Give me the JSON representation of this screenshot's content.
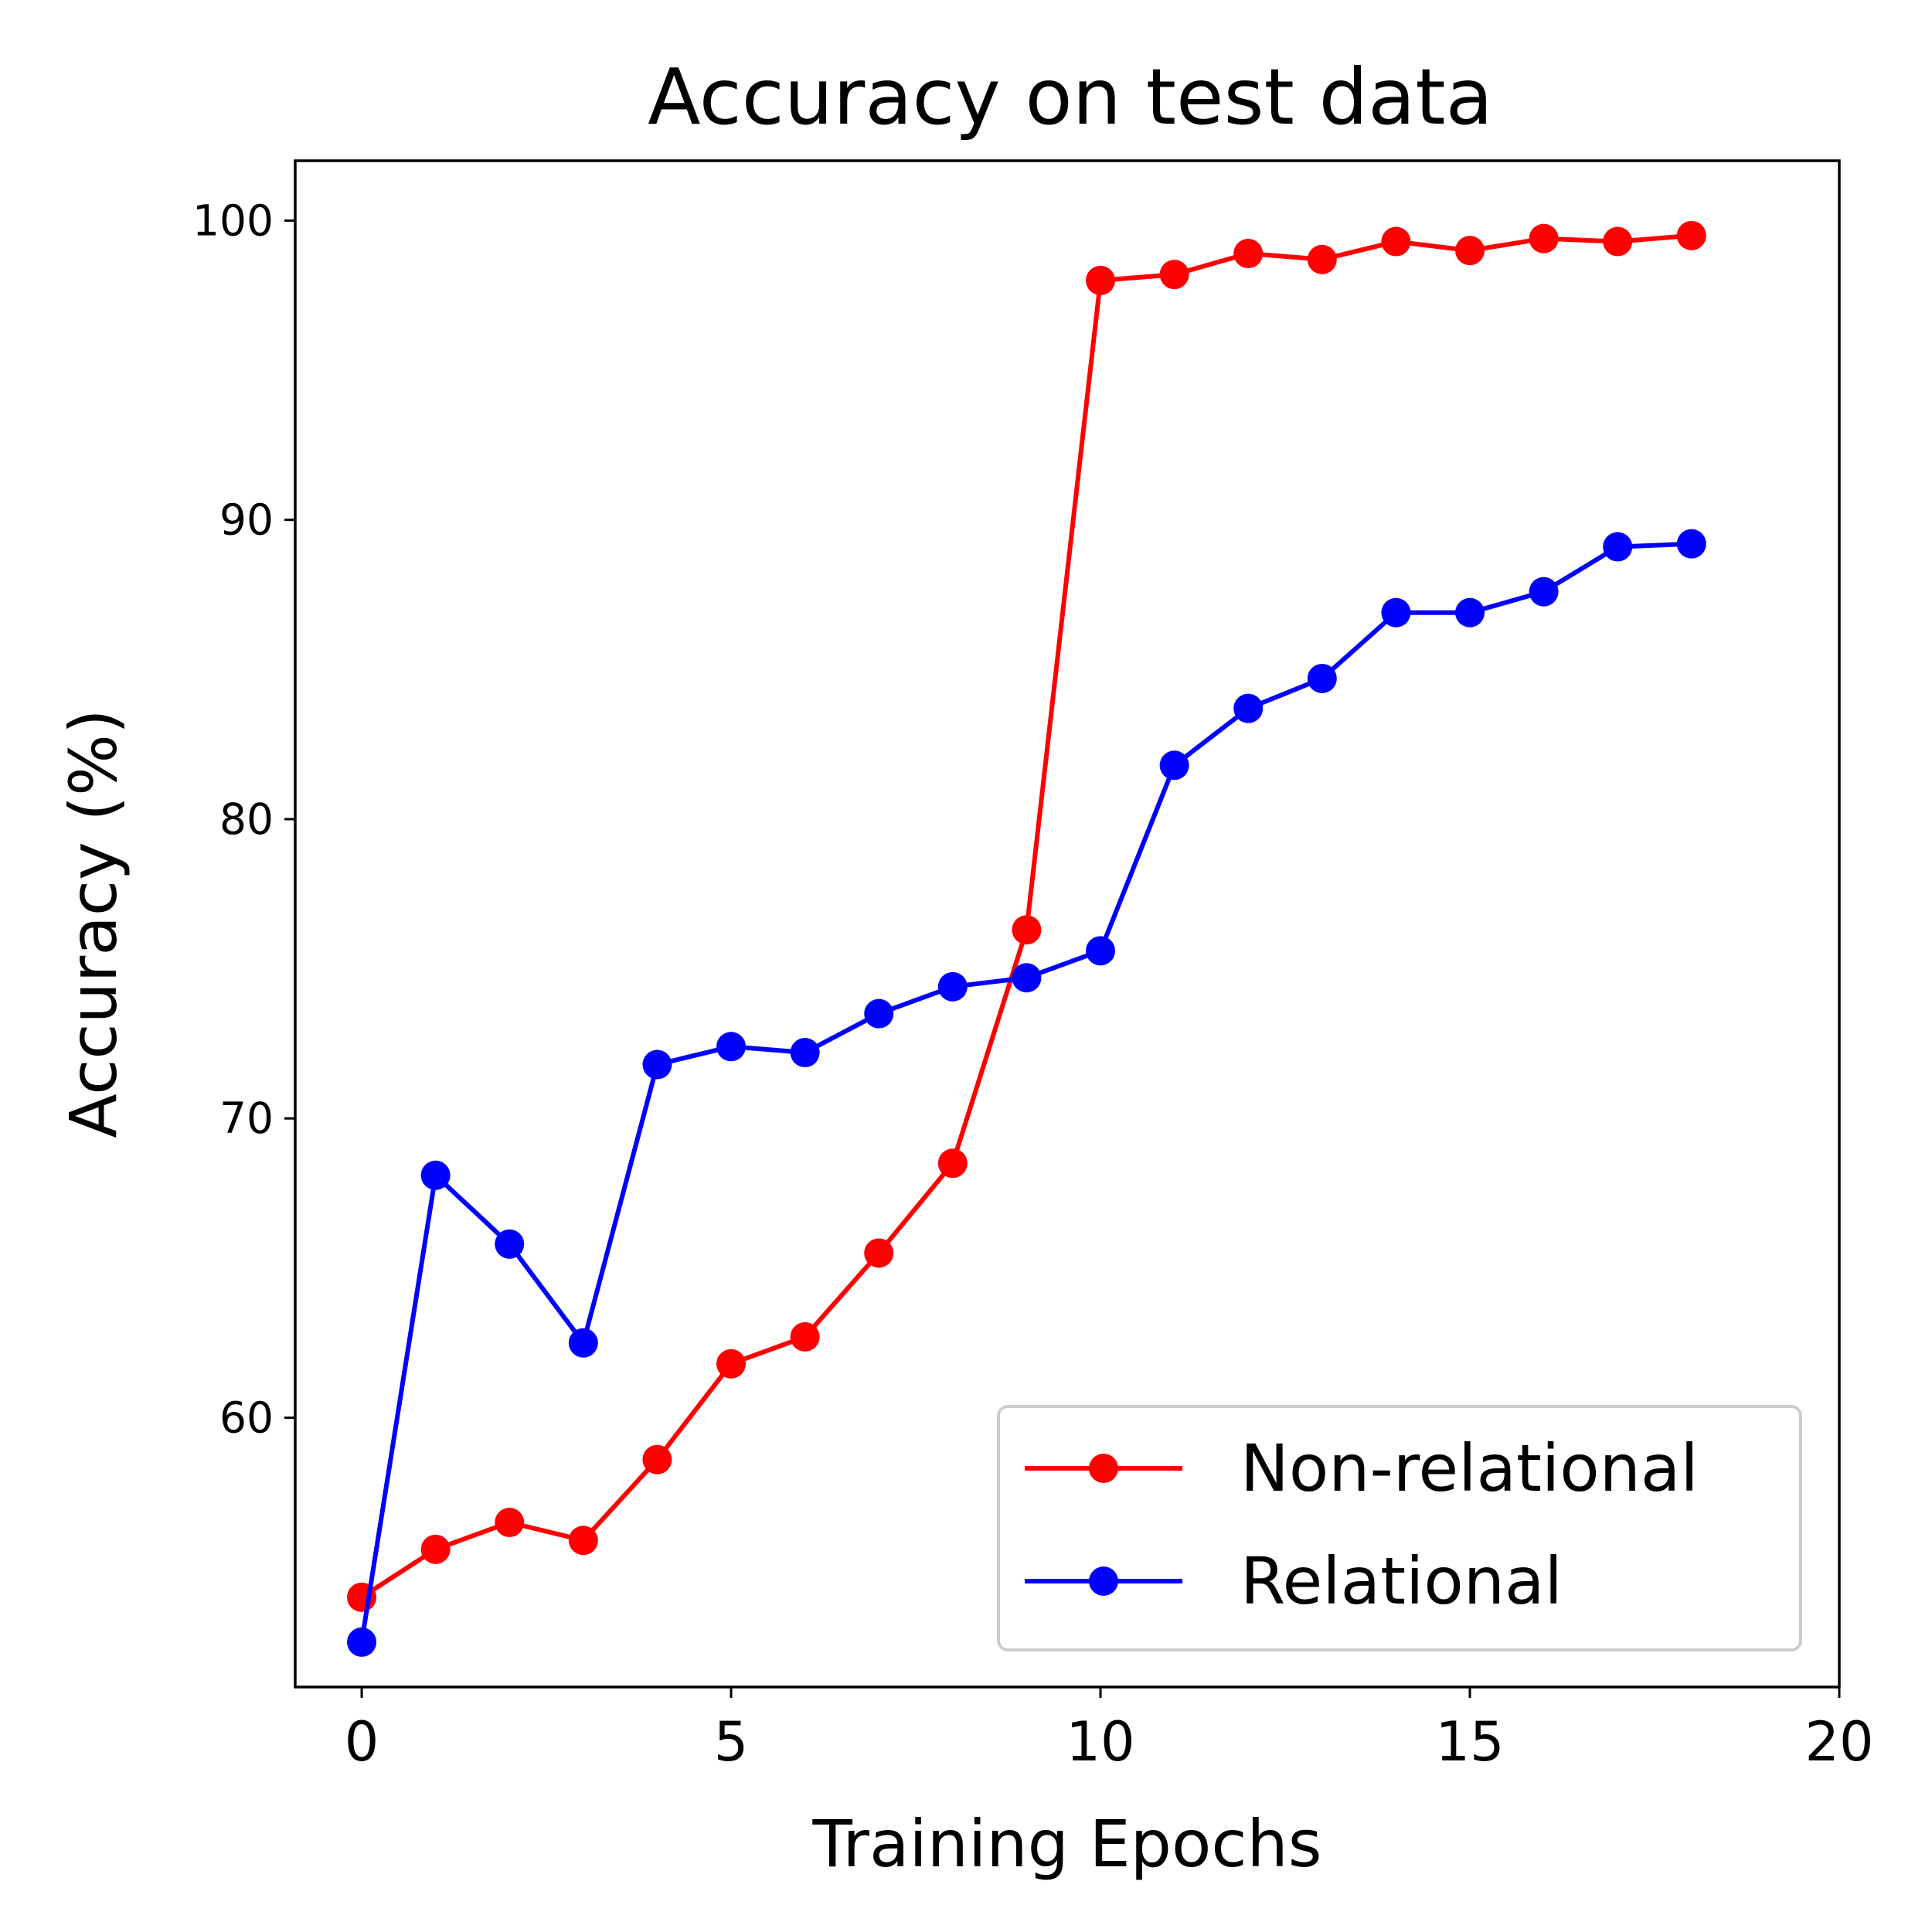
{
  "chart_data": {
    "type": "line",
    "title": "Accuracy on test data",
    "xlabel": "Training Epochs",
    "ylabel": "Accuracy (%)",
    "xlim": [
      -0.9,
      20
    ],
    "ylim": [
      51.0,
      102.0
    ],
    "xticks": [
      0,
      5,
      10,
      15,
      20
    ],
    "yticks": [
      60,
      70,
      80,
      90,
      100
    ],
    "grid": false,
    "legend": "lower-right",
    "series": [
      {
        "name": "Non-relational",
        "color": "#ff0000",
        "marker": "circle",
        "x": [
          0,
          1,
          2,
          3,
          4,
          5,
          6,
          7,
          8,
          9,
          10,
          11,
          12,
          13,
          14,
          15,
          16,
          17,
          18
        ],
        "values": [
          54.0,
          55.6,
          56.5,
          55.9,
          58.6,
          61.8,
          62.7,
          65.5,
          68.5,
          76.3,
          98.0,
          98.2,
          98.9,
          98.7,
          99.3,
          99.0,
          99.4,
          99.3,
          99.5
        ]
      },
      {
        "name": "Relational",
        "color": "#0000ff",
        "marker": "circle",
        "x": [
          0,
          1,
          2,
          3,
          4,
          5,
          6,
          7,
          8,
          9,
          10,
          11,
          12,
          13,
          14,
          15,
          16,
          17,
          18
        ],
        "values": [
          52.5,
          68.1,
          65.8,
          62.5,
          71.8,
          72.4,
          72.2,
          73.5,
          74.4,
          74.7,
          75.6,
          81.8,
          83.7,
          84.7,
          86.9,
          86.9,
          87.6,
          89.1,
          89.2
        ]
      }
    ]
  }
}
